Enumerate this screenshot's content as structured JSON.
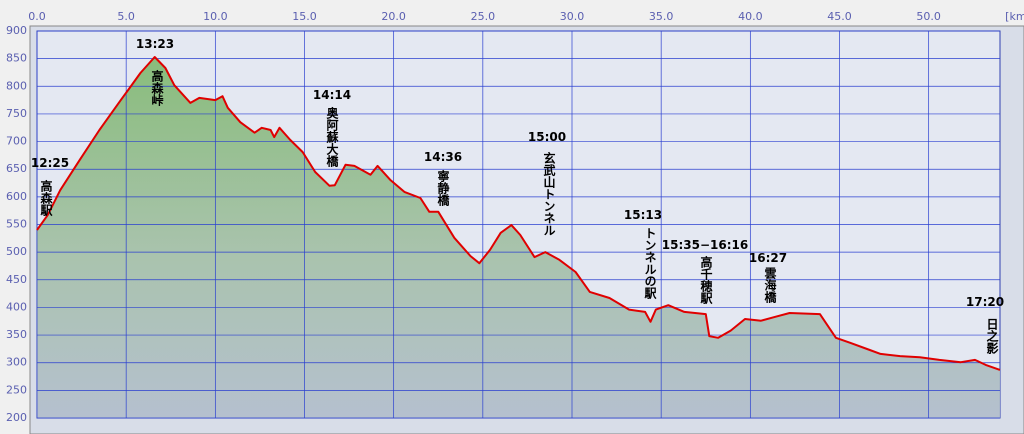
{
  "chart_data": {
    "type": "area",
    "x_label": "[km]",
    "x": [
      0,
      0.6,
      1.3,
      2.4,
      3.5,
      4.7,
      5.2,
      5.8,
      6.6,
      7.2,
      7.7,
      8.6,
      9.1,
      10.0,
      10.4,
      10.7,
      11.4,
      12.2,
      12.6,
      13.1,
      13.3,
      13.6,
      14.2,
      14.9,
      15.6,
      16.4,
      16.7,
      17.3,
      17.8,
      18.7,
      19.1,
      19.8,
      20.6,
      21.5,
      22.0,
      22.5,
      23.4,
      24.3,
      24.8,
      25.4,
      26.0,
      26.6,
      27.1,
      27.9,
      28.5,
      29.3,
      30.2,
      31.0,
      32.1,
      33.2,
      34.1,
      34.4,
      34.7,
      35.4,
      36.3,
      37.5,
      37.7,
      38.2,
      38.9,
      39.7,
      40.6,
      41.4,
      42.2,
      43.9,
      44.8,
      45.6,
      46.7,
      47.3,
      48.4,
      49.5,
      50.6,
      51.8,
      52.6,
      53.2,
      54.0
    ],
    "values": [
      540,
      567,
      612,
      667,
      721,
      775,
      797,
      824,
      853,
      833,
      802,
      770,
      779,
      775,
      782,
      761,
      735,
      716,
      725,
      721,
      708,
      725,
      703,
      681,
      645,
      620,
      621,
      658,
      656,
      640,
      656,
      631,
      609,
      598,
      573,
      573,
      526,
      493,
      480,
      504,
      535,
      549,
      531,
      491,
      500,
      486,
      464,
      428,
      417,
      396,
      392,
      374,
      396,
      404,
      392,
      388,
      348,
      345,
      358,
      379,
      376,
      383,
      390,
      388,
      345,
      336,
      323,
      316,
      312,
      310,
      305,
      301,
      305,
      296,
      287
    ],
    "color": "#e00000",
    "xlim": [
      0,
      54
    ],
    "ylim": [
      200,
      900
    ],
    "xticks": [
      {
        "value": 0,
        "label": "0.0"
      },
      {
        "value": 5,
        "label": "5.0"
      },
      {
        "value": 10,
        "label": "10.0"
      },
      {
        "value": 15,
        "label": "15.0"
      },
      {
        "value": 20,
        "label": "20.0"
      },
      {
        "value": 25,
        "label": "25.0"
      },
      {
        "value": 30,
        "label": "30.0"
      },
      {
        "value": 35,
        "label": "35.0"
      },
      {
        "value": 40,
        "label": "40.0"
      },
      {
        "value": 45,
        "label": "45.0"
      },
      {
        "value": 50,
        "label": "50.0"
      }
    ],
    "yticks": [
      200,
      250,
      300,
      350,
      400,
      450,
      500,
      550,
      600,
      650,
      700,
      750,
      800,
      850,
      900
    ],
    "grid": true
  },
  "annotations": [
    {
      "time": "12:25",
      "label": "高森駅"
    },
    {
      "time": "13:23",
      "label": "高森峠"
    },
    {
      "time": "14:14",
      "label": "奥阿蘇大橋"
    },
    {
      "time": "14:36",
      "label": "寧静橋"
    },
    {
      "time": "15:00",
      "label": "玄武山トンネル"
    },
    {
      "time": "15:13",
      "label": "トンネルの駅"
    },
    {
      "time": "15:35−16:16",
      "label": "高千穂駅"
    },
    {
      "time": "16:27",
      "label": "雲海橋"
    },
    {
      "time": "17:20",
      "label": "日之影"
    }
  ]
}
